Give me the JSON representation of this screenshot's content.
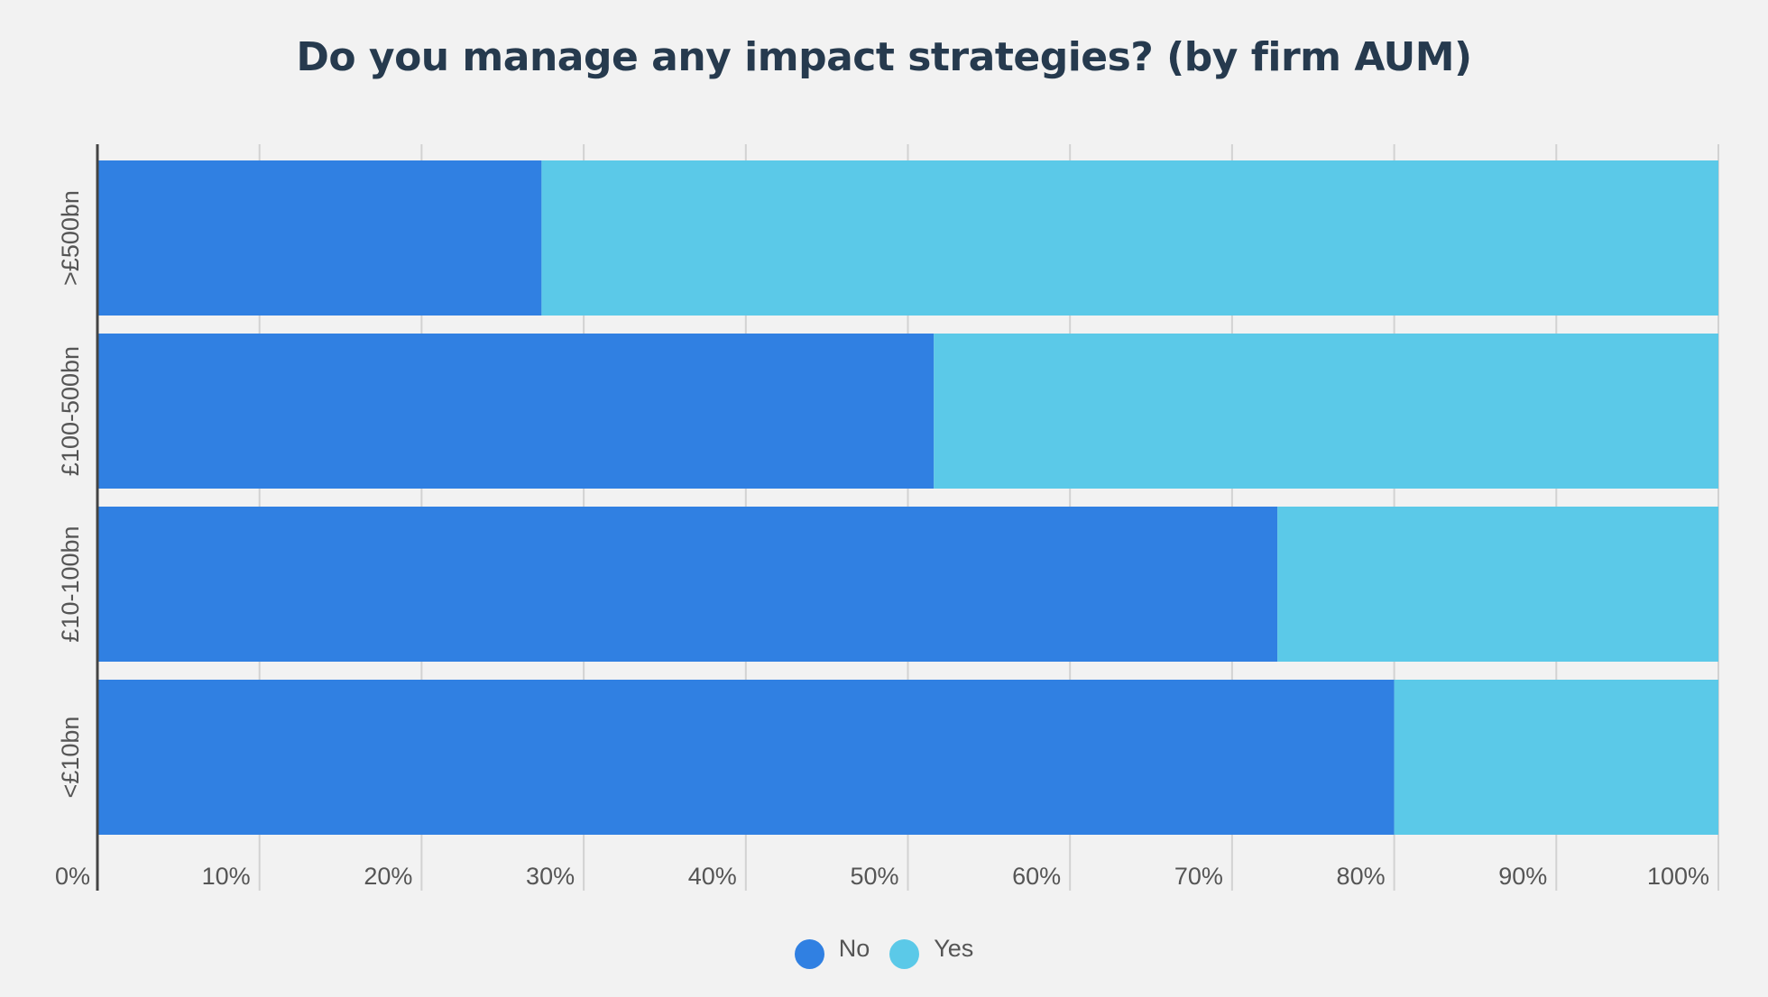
{
  "chart_data": {
    "type": "bar",
    "orientation": "horizontal",
    "stacked": true,
    "title": "Do you manage any impact strategies? (by firm AUM)",
    "categories": [
      ">£500bn",
      "£100-500bn",
      "£10-100bn",
      "<£10bn"
    ],
    "series": [
      {
        "name": "No",
        "color": "#3080e2",
        "values": [
          27.4,
          51.6,
          72.8,
          80.0
        ]
      },
      {
        "name": "Yes",
        "color": "#5bc9e8",
        "values": [
          72.6,
          48.4,
          27.2,
          20.0
        ]
      }
    ],
    "x_ticks": [
      "0%",
      "10%",
      "20%",
      "30%",
      "40%",
      "50%",
      "60%",
      "70%",
      "80%",
      "90%",
      "100%"
    ],
    "xlim": [
      0,
      100
    ],
    "grid": true,
    "legend_position": "bottom-center"
  }
}
